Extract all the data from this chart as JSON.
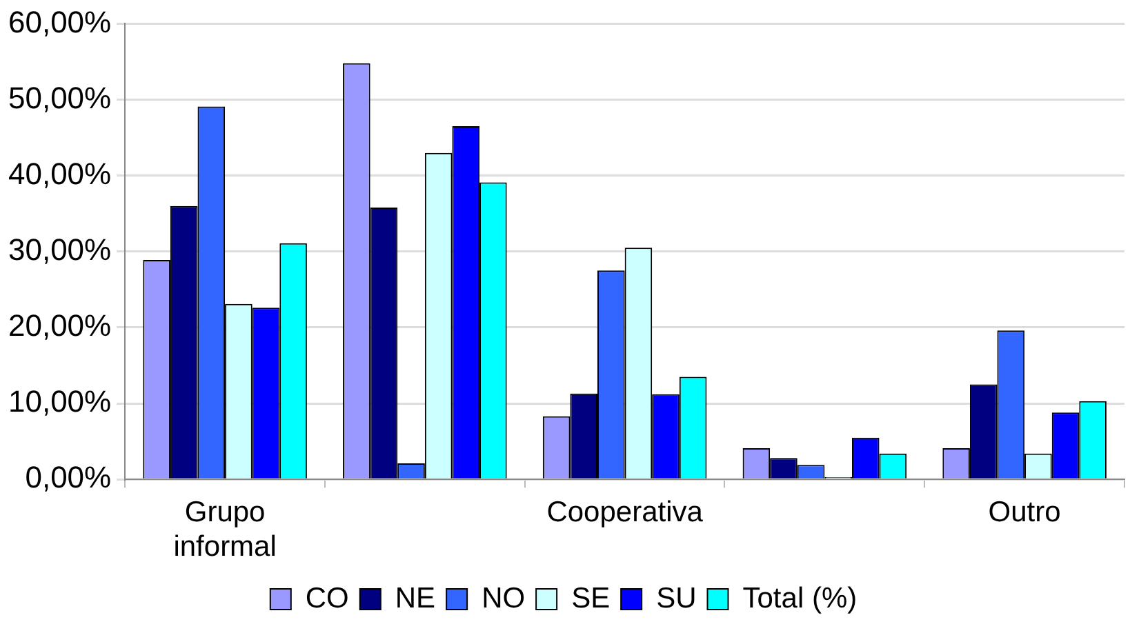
{
  "chart_data": {
    "type": "bar",
    "categories": [
      "Grupo informal",
      null,
      "Cooperativa",
      null,
      "Outro"
    ],
    "series": [
      {
        "name": "CO",
        "color": "#9999ff",
        "values": [
          28.9,
          54.8,
          8.3,
          4.1,
          4.1
        ]
      },
      {
        "name": "NE",
        "color": "#000080",
        "values": [
          36.0,
          35.8,
          11.3,
          2.8,
          12.5
        ]
      },
      {
        "name": "NO",
        "color": "#3366ff",
        "values": [
          49.1,
          2.1,
          27.5,
          1.9,
          19.6
        ]
      },
      {
        "name": "SE",
        "color": "#ccffff",
        "values": [
          23.1,
          43.0,
          30.5,
          0.3,
          3.4
        ]
      },
      {
        "name": "SU",
        "color": "#0000ff",
        "values": [
          22.6,
          46.5,
          11.2,
          5.5,
          8.8
        ]
      },
      {
        "name": "Total (%)",
        "color": "#00ffff",
        "values": [
          31.1,
          39.1,
          13.5,
          3.4,
          10.3
        ]
      }
    ],
    "ylim": [
      0,
      60
    ],
    "yticks": [
      {
        "value": 0,
        "label": "0,00%"
      },
      {
        "value": 10,
        "label": "10,00%"
      },
      {
        "value": 20,
        "label": "20,00%"
      },
      {
        "value": 30,
        "label": "30,00%"
      },
      {
        "value": 40,
        "label": "40,00%"
      },
      {
        "value": 50,
        "label": "50,00%"
      },
      {
        "value": 60,
        "label": "60,00%"
      }
    ],
    "grid": "y",
    "legend": "bottom"
  }
}
